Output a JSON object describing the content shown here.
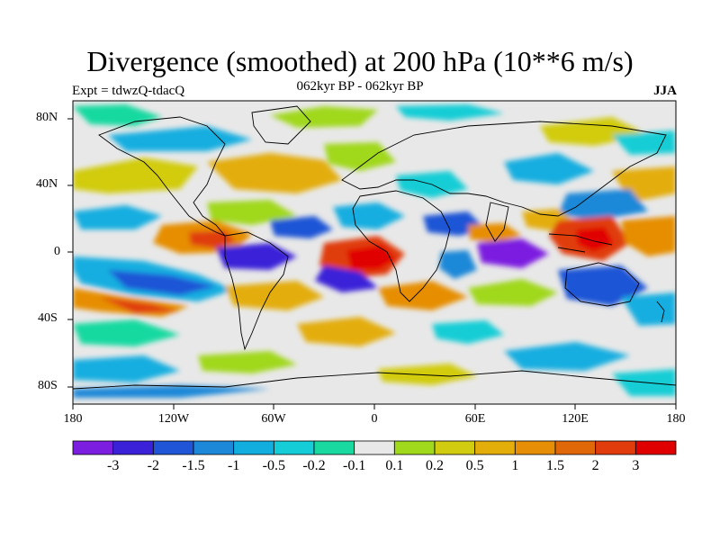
{
  "title": "Divergence (smoothed) at 200 hPa (10**6 m/s)",
  "subtitle": "062kyr BP - 062kyr BP",
  "experiment": "Expt = tdwzQ-tdacQ",
  "season": "JJA",
  "axes": {
    "lat_ticks": [
      "80N",
      "40N",
      "0",
      "40S",
      "80S"
    ],
    "lon_ticks": [
      "180",
      "120W",
      "60W",
      "0",
      "60E",
      "120E",
      "180"
    ]
  },
  "colorbar": {
    "labels": [
      "-3",
      "-2",
      "-1.5",
      "-1",
      "-0.5",
      "-0.2",
      "-0.1",
      "0.1",
      "0.2",
      "0.5",
      "1",
      "1.5",
      "2",
      "3"
    ],
    "colors": [
      "#7b1ee0",
      "#3b22d8",
      "#1f55d6",
      "#1e88d8",
      "#12aee0",
      "#14cdd6",
      "#19d9a0",
      "#e8e8e8",
      "#a0d81c",
      "#d2cc10",
      "#e3ad0a",
      "#e68e06",
      "#e06808",
      "#e03c0c",
      "#e10000"
    ]
  },
  "map_features": {
    "projection": "cylindrical-equidistant",
    "coastlines": true,
    "land_ice_region": "Antarctica"
  }
}
